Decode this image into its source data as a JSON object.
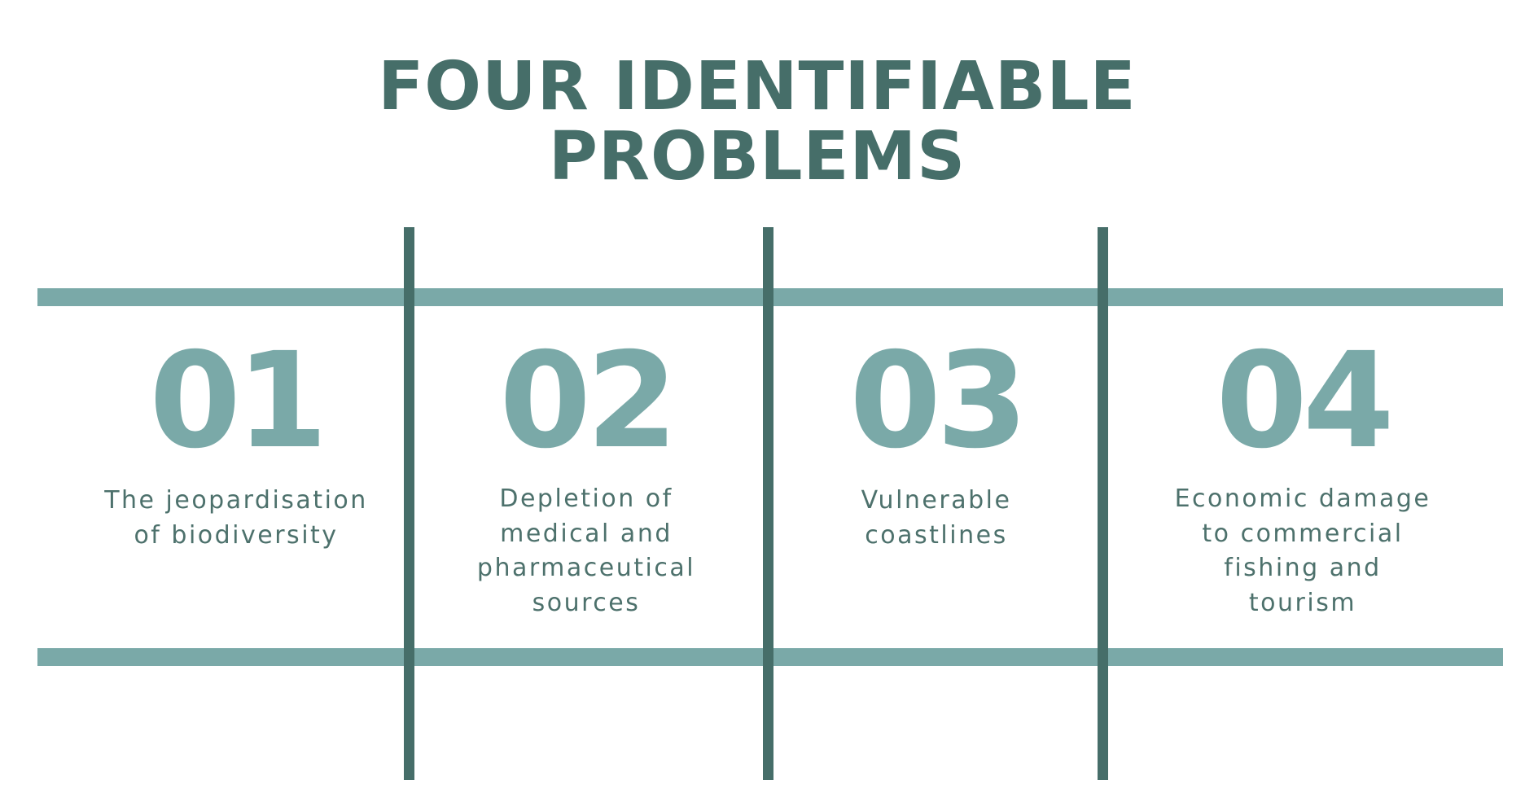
{
  "title": {
    "line1": "FOUR IDENTIFIABLE",
    "line2": "PROBLEMS"
  },
  "items": [
    {
      "number": "01",
      "text": "The jeopardisation\nof biodiversity"
    },
    {
      "number": "02",
      "text": "Depletion of\nmedical and\npharmaceutical\nsources"
    },
    {
      "number": "03",
      "text": "Vulnerable\ncoastlines"
    },
    {
      "number": "04",
      "text": "Economic damage\nto commercial\nfishing and\ntourism"
    }
  ],
  "colors": {
    "title": "#466e69",
    "number": "#7aa9a8",
    "horizontal_bar": "#7aa9a8",
    "vertical_bar": "#466e69",
    "label": "#4d716c"
  }
}
